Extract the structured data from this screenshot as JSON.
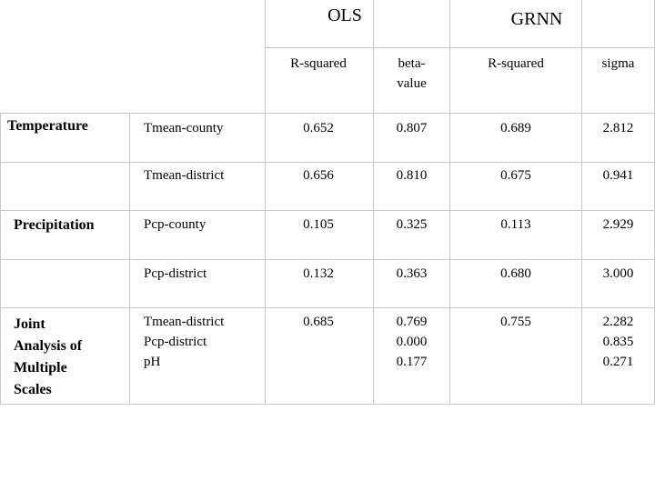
{
  "header": {
    "ols": "OLS",
    "grnn": "GRNN",
    "ols_r2": "R-squared",
    "ols_beta": "beta-\nvalue",
    "grnn_r2": "R-squared",
    "grnn_sigma": "sigma"
  },
  "rows": [
    {
      "group": "Temperature",
      "variable": "Tmean-county",
      "ols_r2": "0.652",
      "beta": "0.807",
      "grnn_r2": "0.689",
      "sigma": "2.812"
    },
    {
      "group": "",
      "variable": "Tmean-district",
      "ols_r2": "0.656",
      "beta": "0.810",
      "grnn_r2": "0.675",
      "sigma": "0.941"
    },
    {
      "group": "Precipitation",
      "variable": "Pcp-county",
      "ols_r2": "0.105",
      "beta": "0.325",
      "grnn_r2": "0.113",
      "sigma": "2.929"
    },
    {
      "group": "",
      "variable": "Pcp-district",
      "ols_r2": "0.132",
      "beta": "0.363",
      "grnn_r2": "0.680",
      "sigma": "3.000"
    },
    {
      "group": "Joint\nAnalysis of\nMultiple\nScales",
      "variable": "Tmean-district\nPcp-district\npH",
      "ols_r2": "0.685",
      "beta": "0.769\n0.000\n0.177",
      "grnn_r2": "0.755",
      "sigma": "2.282\n0.835\n0.271"
    }
  ]
}
